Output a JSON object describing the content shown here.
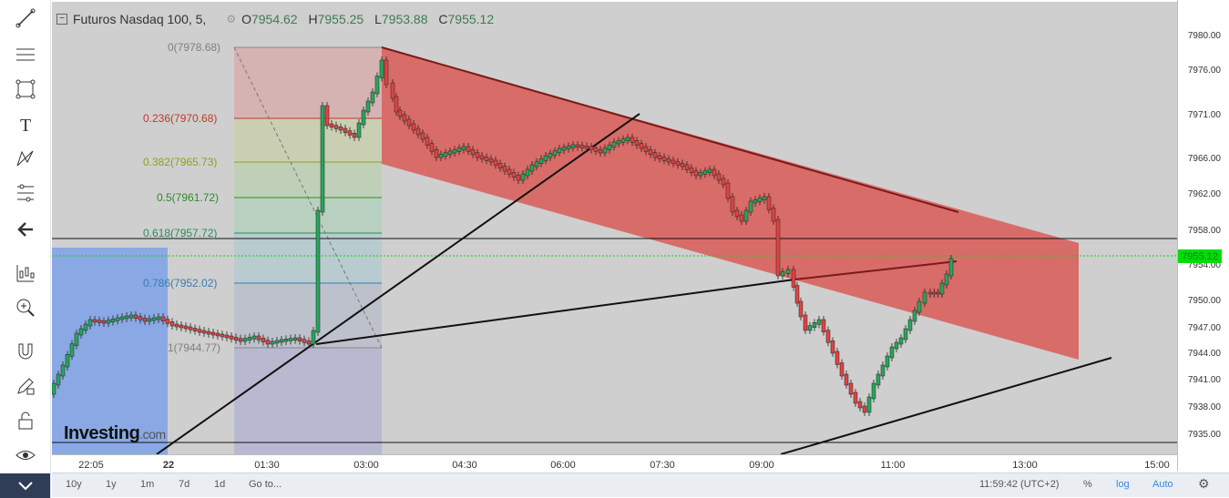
{
  "symbol": {
    "name": "Futuros Nasdaq 100, 5,",
    "open_label": "O",
    "open": "7954.62",
    "high_label": "H",
    "high": "7955.25",
    "low_label": "L",
    "low": "7953.88",
    "close_label": "C",
    "close": "7955.12"
  },
  "toolbar": {
    "icons": [
      "trend-line-icon",
      "horizontal-lines-icon",
      "rectangle-icon",
      "text-icon",
      "pattern-icon",
      "fib-tools-icon",
      "back-arrow-icon",
      "indicators-icon",
      "zoom-in-icon",
      "magnet-icon",
      "pencil-lock-icon",
      "lock-icon",
      "eye-icon",
      "collapse-icon"
    ]
  },
  "price_axis": {
    "ticks": [
      "7980.00",
      "7976.00",
      "7971.00",
      "7966.00",
      "7962.00",
      "7958.00",
      "7954.00",
      "7950.00",
      "7947.00",
      "7944.00",
      "7941.00",
      "7938.00",
      "7935.00"
    ],
    "current_price": "7955.12"
  },
  "time_axis": {
    "ticks": [
      "22:05",
      "22",
      "01:30",
      "03:00",
      "04:30",
      "06:00",
      "07:30",
      "09:00",
      "11:00",
      "13:00",
      "15:00"
    ]
  },
  "fibonacci": {
    "levels": [
      {
        "label": "0(7978.68)",
        "color": "#808080"
      },
      {
        "label": "0.236(7970.68)",
        "color": "#c0392b"
      },
      {
        "label": "0.382(7965.73)",
        "color": "#8aa31a"
      },
      {
        "label": "0.5(7961.72)",
        "color": "#2e8b2e"
      },
      {
        "label": "0.618(7957.72)",
        "color": "#2e8b57"
      },
      {
        "label": "0.786(7952.02)",
        "color": "#3a7ab5"
      },
      {
        "label": "1(7944.77)",
        "color": "#808080"
      }
    ]
  },
  "bottom_bar": {
    "ranges": [
      "10y",
      "1y",
      "1m",
      "7d",
      "1d",
      "Go to..."
    ],
    "time": "11:59:42 (UTC+2)",
    "percent": "%",
    "log": "log",
    "auto": "Auto"
  },
  "logo": {
    "main": "Investing",
    "tld": ".com"
  },
  "colors": {
    "chart_bg": "#cfcfcf",
    "up_candle": "#26a65b",
    "down_candle": "#e04343",
    "channel_fill": "#d9534f",
    "rectangle_fill": "#7ea2e8",
    "price_tag": "#00dd00"
  }
}
